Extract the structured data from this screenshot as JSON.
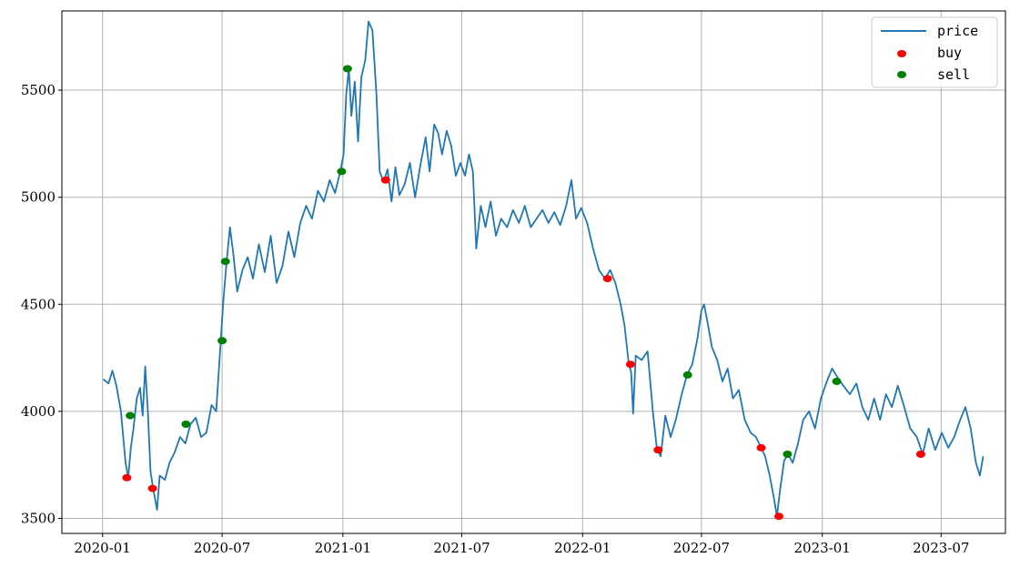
{
  "chart_data": {
    "type": "line",
    "title": "",
    "xlabel": "",
    "ylabel": "",
    "grid": true,
    "legend_position": "top-right",
    "x_range": [
      "2019-10-31",
      "2023-10-07"
    ],
    "ylim": [
      3430,
      5870
    ],
    "x_ticks": [
      "2020-01",
      "2020-07",
      "2021-01",
      "2021-07",
      "2022-01",
      "2022-07",
      "2023-01",
      "2023-07"
    ],
    "y_ticks": [
      3500,
      4000,
      4500,
      5000,
      5500
    ],
    "series": [
      {
        "name": "price",
        "color": "#1f77b4",
        "points": [
          [
            "2020-01-02",
            4150
          ],
          [
            "2020-01-10",
            4130
          ],
          [
            "2020-01-16",
            4190
          ],
          [
            "2020-01-22",
            4120
          ],
          [
            "2020-01-29",
            4000
          ],
          [
            "2020-02-05",
            3760
          ],
          [
            "2020-02-09",
            3690
          ],
          [
            "2020-02-13",
            3830
          ],
          [
            "2020-02-17",
            3920
          ],
          [
            "2020-02-22",
            4060
          ],
          [
            "2020-02-27",
            4110
          ],
          [
            "2020-03-02",
            3980
          ],
          [
            "2020-03-06",
            4210
          ],
          [
            "2020-03-10",
            4000
          ],
          [
            "2020-03-14",
            3720
          ],
          [
            "2020-03-18",
            3640
          ],
          [
            "2020-03-24",
            3540
          ],
          [
            "2020-03-28",
            3700
          ],
          [
            "2020-04-05",
            3680
          ],
          [
            "2020-04-12",
            3760
          ],
          [
            "2020-04-20",
            3810
          ],
          [
            "2020-04-28",
            3880
          ],
          [
            "2020-05-06",
            3850
          ],
          [
            "2020-05-14",
            3940
          ],
          [
            "2020-05-22",
            3970
          ],
          [
            "2020-05-30",
            3880
          ],
          [
            "2020-06-07",
            3900
          ],
          [
            "2020-06-15",
            4030
          ],
          [
            "2020-06-22",
            4000
          ],
          [
            "2020-06-29",
            4330
          ],
          [
            "2020-07-03",
            4520
          ],
          [
            "2020-07-08",
            4700
          ],
          [
            "2020-07-13",
            4860
          ],
          [
            "2020-07-18",
            4740
          ],
          [
            "2020-07-24",
            4560
          ],
          [
            "2020-08-01",
            4660
          ],
          [
            "2020-08-09",
            4720
          ],
          [
            "2020-08-17",
            4620
          ],
          [
            "2020-08-26",
            4780
          ],
          [
            "2020-09-04",
            4650
          ],
          [
            "2020-09-13",
            4820
          ],
          [
            "2020-09-22",
            4600
          ],
          [
            "2020-10-01",
            4680
          ],
          [
            "2020-10-10",
            4840
          ],
          [
            "2020-10-19",
            4720
          ],
          [
            "2020-10-28",
            4880
          ],
          [
            "2020-11-06",
            4960
          ],
          [
            "2020-11-15",
            4900
          ],
          [
            "2020-11-24",
            5030
          ],
          [
            "2020-12-03",
            4980
          ],
          [
            "2020-12-12",
            5080
          ],
          [
            "2020-12-20",
            5020
          ],
          [
            "2020-12-28",
            5120
          ],
          [
            "2021-01-02",
            5200
          ],
          [
            "2021-01-06",
            5480
          ],
          [
            "2021-01-10",
            5600
          ],
          [
            "2021-01-14",
            5380
          ],
          [
            "2021-01-19",
            5540
          ],
          [
            "2021-01-24",
            5260
          ],
          [
            "2021-01-29",
            5560
          ],
          [
            "2021-02-04",
            5640
          ],
          [
            "2021-02-09",
            5820
          ],
          [
            "2021-02-15",
            5780
          ],
          [
            "2021-02-21",
            5480
          ],
          [
            "2021-02-26",
            5120
          ],
          [
            "2021-03-04",
            5070
          ],
          [
            "2021-03-10",
            5130
          ],
          [
            "2021-03-16",
            4980
          ],
          [
            "2021-03-22",
            5140
          ],
          [
            "2021-03-28",
            5010
          ],
          [
            "2021-04-05",
            5060
          ],
          [
            "2021-04-13",
            5160
          ],
          [
            "2021-04-21",
            5000
          ],
          [
            "2021-04-29",
            5150
          ],
          [
            "2021-05-07",
            5280
          ],
          [
            "2021-05-13",
            5120
          ],
          [
            "2021-05-20",
            5340
          ],
          [
            "2021-05-26",
            5300
          ],
          [
            "2021-06-01",
            5200
          ],
          [
            "2021-06-08",
            5310
          ],
          [
            "2021-06-15",
            5240
          ],
          [
            "2021-06-22",
            5100
          ],
          [
            "2021-06-29",
            5160
          ],
          [
            "2021-07-06",
            5100
          ],
          [
            "2021-07-12",
            5200
          ],
          [
            "2021-07-18",
            5120
          ],
          [
            "2021-07-23",
            4760
          ],
          [
            "2021-07-30",
            4960
          ],
          [
            "2021-08-06",
            4860
          ],
          [
            "2021-08-14",
            4980
          ],
          [
            "2021-08-22",
            4820
          ],
          [
            "2021-08-30",
            4900
          ],
          [
            "2021-09-08",
            4860
          ],
          [
            "2021-09-17",
            4940
          ],
          [
            "2021-09-26",
            4880
          ],
          [
            "2021-10-05",
            4960
          ],
          [
            "2021-10-14",
            4860
          ],
          [
            "2021-10-23",
            4900
          ],
          [
            "2021-11-01",
            4940
          ],
          [
            "2021-11-10",
            4880
          ],
          [
            "2021-11-19",
            4930
          ],
          [
            "2021-11-28",
            4870
          ],
          [
            "2021-12-07",
            4960
          ],
          [
            "2021-12-15",
            5080
          ],
          [
            "2021-12-22",
            4900
          ],
          [
            "2021-12-30",
            4950
          ],
          [
            "2022-01-08",
            4880
          ],
          [
            "2022-01-17",
            4760
          ],
          [
            "2022-01-26",
            4660
          ],
          [
            "2022-02-04",
            4620
          ],
          [
            "2022-02-12",
            4660
          ],
          [
            "2022-02-20",
            4600
          ],
          [
            "2022-02-28",
            4500
          ],
          [
            "2022-03-06",
            4400
          ],
          [
            "2022-03-12",
            4230
          ],
          [
            "2022-03-16",
            4180
          ],
          [
            "2022-03-19",
            3990
          ],
          [
            "2022-03-23",
            4260
          ],
          [
            "2022-04-01",
            4240
          ],
          [
            "2022-04-10",
            4280
          ],
          [
            "2022-04-18",
            4000
          ],
          [
            "2022-04-24",
            3830
          ],
          [
            "2022-04-30",
            3790
          ],
          [
            "2022-05-07",
            3980
          ],
          [
            "2022-05-15",
            3880
          ],
          [
            "2022-05-23",
            3960
          ],
          [
            "2022-06-01",
            4080
          ],
          [
            "2022-06-09",
            4170
          ],
          [
            "2022-06-17",
            4220
          ],
          [
            "2022-06-25",
            4340
          ],
          [
            "2022-07-01",
            4470
          ],
          [
            "2022-07-05",
            4500
          ],
          [
            "2022-07-10",
            4420
          ],
          [
            "2022-07-17",
            4300
          ],
          [
            "2022-07-25",
            4240
          ],
          [
            "2022-08-02",
            4140
          ],
          [
            "2022-08-10",
            4200
          ],
          [
            "2022-08-18",
            4060
          ],
          [
            "2022-08-27",
            4100
          ],
          [
            "2022-09-05",
            3960
          ],
          [
            "2022-09-14",
            3900
          ],
          [
            "2022-09-22",
            3880
          ],
          [
            "2022-09-30",
            3830
          ],
          [
            "2022-10-06",
            3790
          ],
          [
            "2022-10-13",
            3700
          ],
          [
            "2022-10-19",
            3600
          ],
          [
            "2022-10-24",
            3510
          ],
          [
            "2022-10-29",
            3640
          ],
          [
            "2022-11-04",
            3770
          ],
          [
            "2022-11-10",
            3800
          ],
          [
            "2022-11-17",
            3760
          ],
          [
            "2022-11-25",
            3850
          ],
          [
            "2022-12-03",
            3960
          ],
          [
            "2022-12-12",
            4000
          ],
          [
            "2022-12-21",
            3920
          ],
          [
            "2022-12-30",
            4060
          ],
          [
            "2023-01-08",
            4140
          ],
          [
            "2023-01-16",
            4200
          ],
          [
            "2023-01-24",
            4160
          ],
          [
            "2023-02-02",
            4120
          ],
          [
            "2023-02-12",
            4080
          ],
          [
            "2023-02-22",
            4130
          ],
          [
            "2023-03-03",
            4020
          ],
          [
            "2023-03-12",
            3960
          ],
          [
            "2023-03-21",
            4060
          ],
          [
            "2023-03-30",
            3960
          ],
          [
            "2023-04-08",
            4080
          ],
          [
            "2023-04-17",
            4020
          ],
          [
            "2023-04-26",
            4120
          ],
          [
            "2023-05-05",
            4030
          ],
          [
            "2023-05-15",
            3920
          ],
          [
            "2023-05-25",
            3880
          ],
          [
            "2023-06-03",
            3800
          ],
          [
            "2023-06-12",
            3920
          ],
          [
            "2023-06-22",
            3820
          ],
          [
            "2023-07-02",
            3900
          ],
          [
            "2023-07-12",
            3830
          ],
          [
            "2023-07-21",
            3880
          ],
          [
            "2023-07-30",
            3960
          ],
          [
            "2023-08-07",
            4020
          ],
          [
            "2023-08-15",
            3920
          ],
          [
            "2023-08-23",
            3760
          ],
          [
            "2023-08-29",
            3700
          ],
          [
            "2023-09-03",
            3790
          ]
        ]
      },
      {
        "name": "buy",
        "color": "#ff0000",
        "points": [
          [
            "2020-02-07",
            3690
          ],
          [
            "2020-03-17",
            3640
          ],
          [
            "2021-03-07",
            5080
          ],
          [
            "2022-02-08",
            4620
          ],
          [
            "2022-03-15",
            4220
          ],
          [
            "2022-04-26",
            3820
          ],
          [
            "2022-09-30",
            3830
          ],
          [
            "2022-10-27",
            3510
          ],
          [
            "2023-05-31",
            3800
          ]
        ]
      },
      {
        "name": "sell",
        "color": "#008000",
        "points": [
          [
            "2020-02-12",
            3980
          ],
          [
            "2020-05-07",
            3940
          ],
          [
            "2020-07-01",
            4330
          ],
          [
            "2020-07-06",
            4700
          ],
          [
            "2020-12-30",
            5120
          ],
          [
            "2021-01-08",
            5600
          ],
          [
            "2022-06-10",
            4170
          ],
          [
            "2022-11-09",
            3800
          ],
          [
            "2023-01-23",
            4140
          ]
        ]
      }
    ]
  }
}
